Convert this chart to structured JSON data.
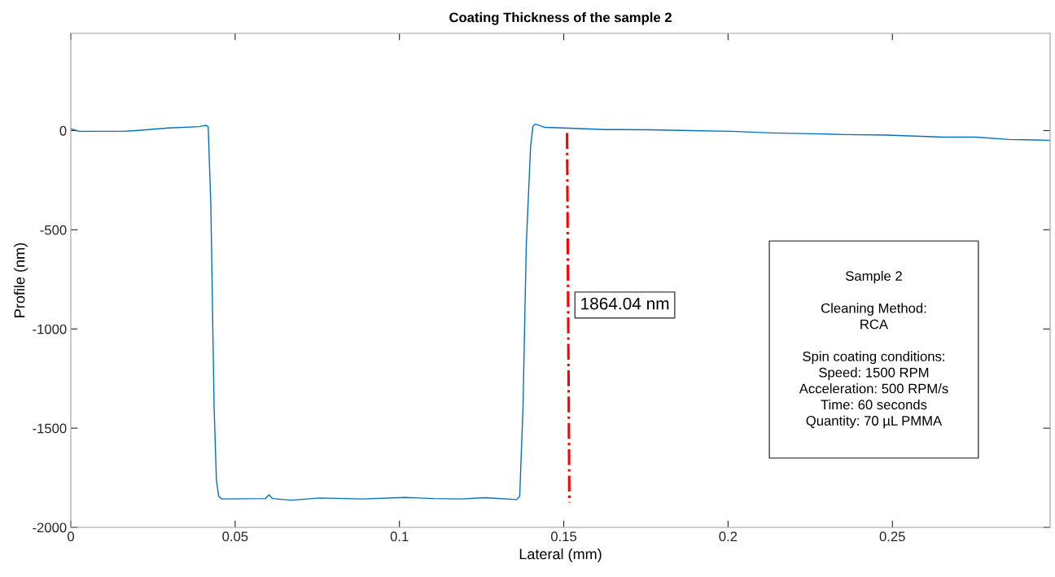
{
  "chart_data": {
    "type": "line",
    "title": "Coating Thickness of the sample 2",
    "xlabel": "Lateral (mm)",
    "ylabel": "Profile (nm)",
    "xlim": [
      0,
      0.298
    ],
    "ylim": [
      -2000,
      490
    ],
    "xticks": [
      0,
      0.05,
      0.1,
      0.15,
      0.2,
      0.25
    ],
    "yticks": [
      -2000,
      -1500,
      -1000,
      -500,
      0
    ],
    "grid": false,
    "legend": false,
    "marker": "none",
    "series": [
      {
        "color": "#0072bd",
        "line_style": "solid",
        "x": [
          0,
          0.0025,
          0.0156,
          0.0198,
          0.0297,
          0.0391,
          0.041,
          0.0418,
          0.0426,
          0.0436,
          0.0443,
          0.045,
          0.046,
          0.0592,
          0.0603,
          0.0614,
          0.0671,
          0.0757,
          0.0888,
          0.1017,
          0.1104,
          0.119,
          0.126,
          0.1357,
          0.1366,
          0.1376,
          0.1386,
          0.1399,
          0.1406,
          0.1413,
          0.1443,
          0.1517,
          0.1629,
          0.1765,
          0.1889,
          0.2012,
          0.2136,
          0.226,
          0.2359,
          0.2483,
          0.2656,
          0.2755,
          0.2854,
          0.2978
        ],
        "values": [
          9,
          -4,
          -4,
          0,
          13,
          20,
          27,
          20,
          -369,
          -1393,
          -1762,
          -1844,
          -1857,
          -1855,
          -1836,
          -1855,
          -1863,
          -1852,
          -1857,
          -1849,
          -1855,
          -1857,
          -1850,
          -1860,
          -1843,
          -1393,
          -574,
          -82,
          20,
          33,
          16,
          12,
          5,
          4,
          0,
          -4,
          -12,
          -16,
          -20,
          -23,
          -33,
          -33,
          -45,
          -49
        ]
      },
      {
        "color": "#ff0000",
        "line_style": "dashdot",
        "x": [
          0.151,
          0.1517
        ],
        "values": [
          -12,
          -1875
        ]
      }
    ],
    "annotations": [
      "1864.04 nm",
      "Sample 2\n\nCleaning Method:\nRCA\n\nSpin coating conditions:\nSpeed: 1500 RPM\nAcceleration: 500 RPM/s\nTime: 60 seconds\nQuantity: 70 µL PMMA"
    ]
  }
}
